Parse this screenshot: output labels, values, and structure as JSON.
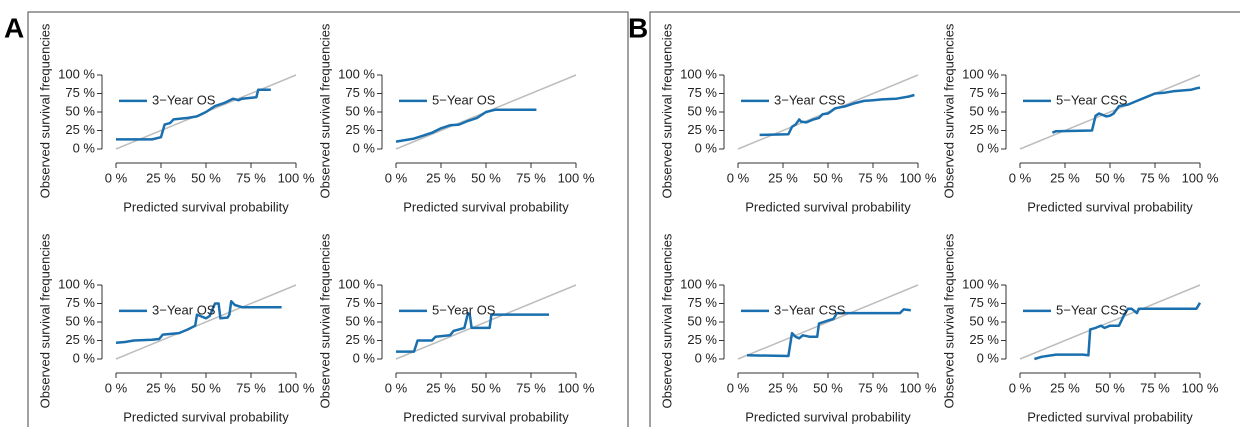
{
  "panel_labels": [
    "A",
    "B"
  ],
  "chart_data": [
    {
      "type": "line",
      "xlabel": "Predicted survival probability",
      "ylabel": "Observed survival frequencies",
      "xlim": [
        0,
        100
      ],
      "ylim": [
        0,
        100
      ],
      "xticks": [
        {
          "value": 0,
          "label": "0 %"
        },
        {
          "value": 25,
          "label": "25 %"
        },
        {
          "value": 50,
          "label": "50 %"
        },
        {
          "value": 75,
          "label": "75 %"
        },
        {
          "value": 100,
          "label": "100 %"
        }
      ],
      "yticks": [
        {
          "value": 0,
          "label": "0 %"
        },
        {
          "value": 25,
          "label": "25 %"
        },
        {
          "value": 50,
          "label": "50 %"
        },
        {
          "value": 75,
          "label": "75 %"
        },
        {
          "value": 100,
          "label": "100 %"
        }
      ],
      "diagonal_color": "#bdbdbd",
      "x": [
        0,
        20,
        25,
        27,
        30,
        32,
        40,
        45,
        50,
        55,
        60,
        65,
        68,
        70,
        78,
        79,
        86
      ],
      "series": [
        {
          "name": "3−Year OS",
          "color": "#1a6fae",
          "values": [
            13,
            13,
            16,
            33,
            35,
            40,
            42,
            44,
            50,
            58,
            62,
            68,
            66,
            68,
            70,
            80,
            80
          ]
        }
      ]
    },
    {
      "type": "line",
      "xlabel": "Predicted survival probability",
      "ylabel": "Observed survival frequencies",
      "xlim": [
        0,
        100
      ],
      "ylim": [
        0,
        100
      ],
      "xticks": [
        {
          "value": 0,
          "label": "0 %"
        },
        {
          "value": 25,
          "label": "25 %"
        },
        {
          "value": 50,
          "label": "50 %"
        },
        {
          "value": 75,
          "label": "75 %"
        },
        {
          "value": 100,
          "label": "100 %"
        }
      ],
      "yticks": [
        {
          "value": 0,
          "label": "0 %"
        },
        {
          "value": 25,
          "label": "25 %"
        },
        {
          "value": 50,
          "label": "50 %"
        },
        {
          "value": 75,
          "label": "75 %"
        },
        {
          "value": 100,
          "label": "100 %"
        }
      ],
      "diagonal_color": "#bdbdbd",
      "x": [
        0,
        5,
        10,
        15,
        20,
        25,
        30,
        35,
        40,
        45,
        50,
        55,
        78
      ],
      "series": [
        {
          "name": "5−Year OS",
          "color": "#1a6fae",
          "values": [
            10,
            12,
            14,
            18,
            22,
            28,
            32,
            33,
            38,
            42,
            50,
            53,
            53
          ]
        }
      ]
    },
    {
      "type": "line",
      "xlabel": "Predicted survival probability",
      "ylabel": "Observed survival frequencies",
      "xlim": [
        0,
        100
      ],
      "ylim": [
        0,
        100
      ],
      "xticks": [
        {
          "value": 0,
          "label": "0 %"
        },
        {
          "value": 25,
          "label": "25 %"
        },
        {
          "value": 50,
          "label": "50 %"
        },
        {
          "value": 75,
          "label": "75 %"
        },
        {
          "value": 100,
          "label": "100 %"
        }
      ],
      "yticks": [
        {
          "value": 0,
          "label": "0 %"
        },
        {
          "value": 25,
          "label": "25 %"
        },
        {
          "value": 50,
          "label": "50 %"
        },
        {
          "value": 75,
          "label": "75 %"
        },
        {
          "value": 100,
          "label": "100 %"
        }
      ],
      "diagonal_color": "#bdbdbd",
      "x": [
        12,
        28,
        30,
        32,
        34,
        35,
        38,
        42,
        45,
        47,
        50,
        54,
        60,
        65,
        70,
        75,
        80,
        88,
        95,
        98
      ],
      "series": [
        {
          "name": "3−Year CSS",
          "color": "#1a6fae",
          "values": [
            19,
            20,
            30,
            33,
            40,
            37,
            36,
            40,
            42,
            47,
            48,
            55,
            58,
            62,
            65,
            66,
            67,
            68,
            71,
            73
          ]
        }
      ]
    },
    {
      "type": "line",
      "xlabel": "Predicted survival probability",
      "ylabel": "Observed survival frequencies",
      "xlim": [
        0,
        100
      ],
      "ylim": [
        0,
        100
      ],
      "xticks": [
        {
          "value": 0,
          "label": "0 %"
        },
        {
          "value": 25,
          "label": "25 %"
        },
        {
          "value": 50,
          "label": "50 %"
        },
        {
          "value": 75,
          "label": "75 %"
        },
        {
          "value": 100,
          "label": "100 %"
        }
      ],
      "yticks": [
        {
          "value": 0,
          "label": "0 %"
        },
        {
          "value": 25,
          "label": "25 %"
        },
        {
          "value": 50,
          "label": "50 %"
        },
        {
          "value": 75,
          "label": "75 %"
        },
        {
          "value": 100,
          "label": "100 %"
        }
      ],
      "diagonal_color": "#bdbdbd",
      "x": [
        18,
        20,
        40,
        42,
        44,
        46,
        48,
        50,
        52,
        55,
        60,
        65,
        70,
        75,
        80,
        85,
        90,
        95,
        98,
        100
      ],
      "series": [
        {
          "name": "5−Year CSS",
          "color": "#1a6fae",
          "values": [
            22,
            24,
            25,
            45,
            48,
            46,
            44,
            45,
            48,
            58,
            60,
            65,
            70,
            75,
            76,
            78,
            79,
            80,
            82,
            83
          ]
        }
      ]
    },
    {
      "type": "line",
      "xlabel": "Predicted survival probability",
      "ylabel": "Observed survival frequencies",
      "xlim": [
        0,
        100
      ],
      "ylim": [
        0,
        100
      ],
      "xticks": [
        {
          "value": 0,
          "label": "0 %"
        },
        {
          "value": 25,
          "label": "25 %"
        },
        {
          "value": 50,
          "label": "50 %"
        },
        {
          "value": 75,
          "label": "75 %"
        },
        {
          "value": 100,
          "label": "100 %"
        }
      ],
      "yticks": [
        {
          "value": 0,
          "label": "0 %"
        },
        {
          "value": 25,
          "label": "25 %"
        },
        {
          "value": 50,
          "label": "50 %"
        },
        {
          "value": 75,
          "label": "75 %"
        },
        {
          "value": 100,
          "label": "100 %"
        }
      ],
      "diagonal_color": "#bdbdbd",
      "x": [
        0,
        5,
        10,
        20,
        24,
        26,
        35,
        40,
        44,
        45,
        47,
        50,
        52,
        55,
        57,
        58,
        62,
        63,
        64,
        66,
        70,
        92
      ],
      "series": [
        {
          "name": "3−Year OS",
          "color": "#1a6fae",
          "values": [
            22,
            23,
            25,
            26,
            27,
            33,
            35,
            40,
            45,
            60,
            58,
            55,
            58,
            75,
            75,
            55,
            56,
            60,
            78,
            73,
            70,
            70
          ]
        }
      ]
    },
    {
      "type": "line",
      "xlabel": "Predicted survival probability",
      "ylabel": "Observed survival frequencies",
      "xlim": [
        0,
        100
      ],
      "ylim": [
        0,
        100
      ],
      "xticks": [
        {
          "value": 0,
          "label": "0 %"
        },
        {
          "value": 25,
          "label": "25 %"
        },
        {
          "value": 50,
          "label": "50 %"
        },
        {
          "value": 75,
          "label": "75 %"
        },
        {
          "value": 100,
          "label": "100 %"
        }
      ],
      "yticks": [
        {
          "value": 0,
          "label": "0 %"
        },
        {
          "value": 25,
          "label": "25 %"
        },
        {
          "value": 50,
          "label": "50 %"
        },
        {
          "value": 75,
          "label": "75 %"
        },
        {
          "value": 100,
          "label": "100 %"
        }
      ],
      "diagonal_color": "#bdbdbd",
      "x": [
        0,
        10,
        12,
        20,
        22,
        30,
        32,
        35,
        38,
        40,
        41,
        42,
        52,
        53,
        85
      ],
      "series": [
        {
          "name": "5−Year OS",
          "color": "#1a6fae",
          "values": [
            10,
            10,
            25,
            25,
            30,
            32,
            38,
            40,
            42,
            62,
            60,
            42,
            42,
            60,
            60
          ]
        }
      ]
    },
    {
      "type": "line",
      "xlabel": "Predicted survival probability",
      "ylabel": "Observed survival frequencies",
      "xlim": [
        0,
        100
      ],
      "ylim": [
        0,
        100
      ],
      "xticks": [
        {
          "value": 0,
          "label": "0 %"
        },
        {
          "value": 25,
          "label": "25 %"
        },
        {
          "value": 50,
          "label": "50 %"
        },
        {
          "value": 75,
          "label": "75 %"
        },
        {
          "value": 100,
          "label": "100 %"
        }
      ],
      "yticks": [
        {
          "value": 0,
          "label": "0 %"
        },
        {
          "value": 25,
          "label": "25 %"
        },
        {
          "value": 50,
          "label": "50 %"
        },
        {
          "value": 75,
          "label": "75 %"
        },
        {
          "value": 100,
          "label": "100 %"
        }
      ],
      "diagonal_color": "#bdbdbd",
      "x": [
        5,
        28,
        30,
        32,
        34,
        36,
        40,
        44,
        45,
        50,
        53,
        55,
        90,
        92,
        96
      ],
      "series": [
        {
          "name": "3−Year CSS",
          "color": "#1a6fae",
          "values": [
            5,
            4,
            35,
            30,
            28,
            32,
            30,
            30,
            48,
            52,
            54,
            62,
            62,
            67,
            66
          ]
        }
      ]
    },
    {
      "type": "line",
      "xlabel": "Predicted survival probability",
      "ylabel": "Observed survival frequencies",
      "xlim": [
        0,
        100
      ],
      "ylim": [
        0,
        100
      ],
      "xticks": [
        {
          "value": 0,
          "label": "0 %"
        },
        {
          "value": 25,
          "label": "25 %"
        },
        {
          "value": 50,
          "label": "50 %"
        },
        {
          "value": 75,
          "label": "75 %"
        },
        {
          "value": 100,
          "label": "100 %"
        }
      ],
      "yticks": [
        {
          "value": 0,
          "label": "0 %"
        },
        {
          "value": 25,
          "label": "25 %"
        },
        {
          "value": 50,
          "label": "50 %"
        },
        {
          "value": 75,
          "label": "75 %"
        },
        {
          "value": 100,
          "label": "100 %"
        }
      ],
      "diagonal_color": "#bdbdbd",
      "x": [
        8,
        12,
        20,
        35,
        38,
        39,
        42,
        45,
        47,
        50,
        55,
        58,
        60,
        62,
        65,
        66,
        98,
        100
      ],
      "series": [
        {
          "name": "5−Year CSS",
          "color": "#1a6fae",
          "values": [
            0,
            3,
            6,
            6,
            5,
            40,
            42,
            45,
            42,
            45,
            45,
            60,
            68,
            68,
            62,
            68,
            68,
            76
          ]
        }
      ]
    }
  ]
}
